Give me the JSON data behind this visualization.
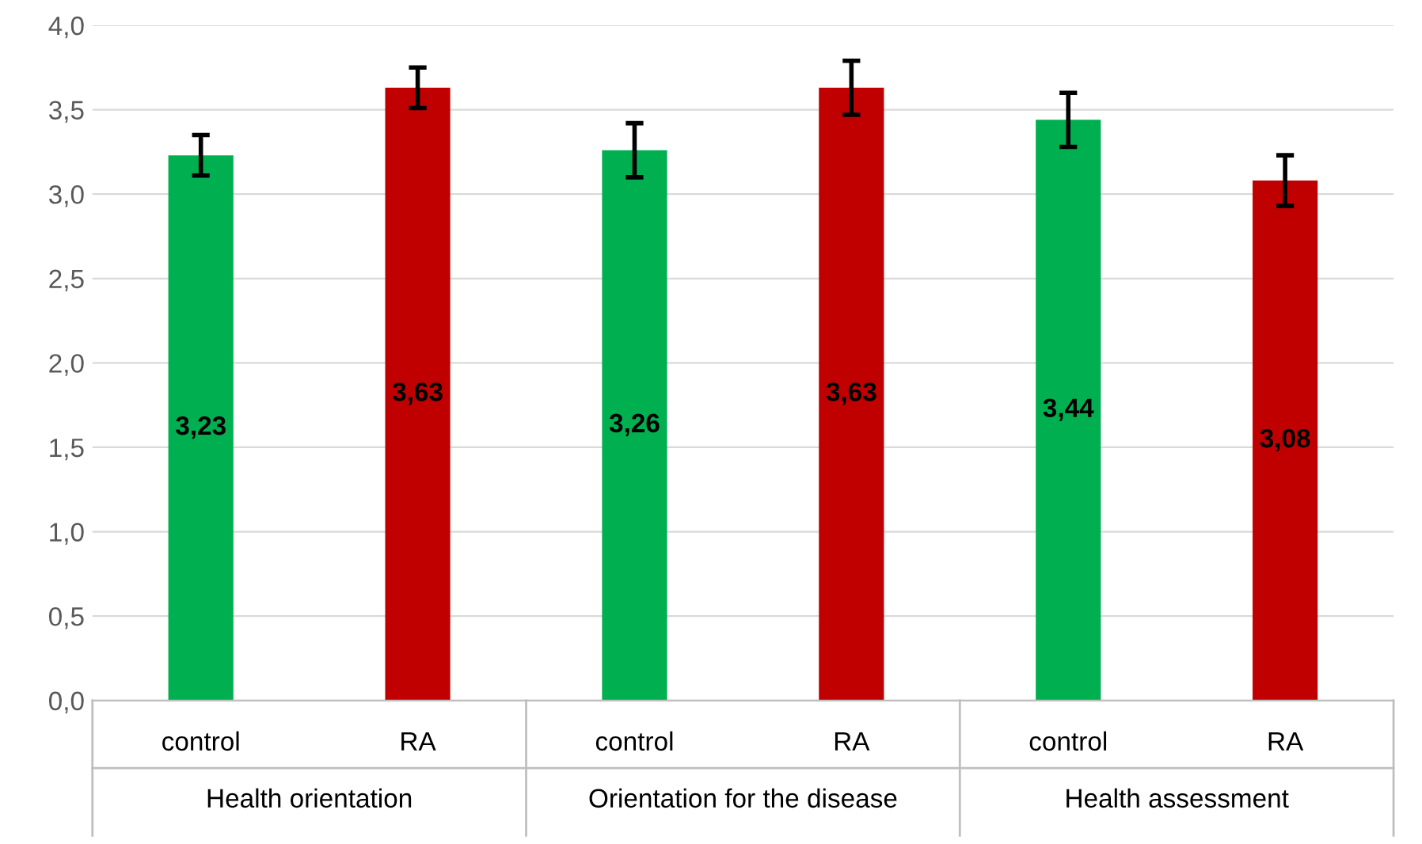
{
  "chart_data": {
    "type": "bar",
    "categories": [
      "control",
      "RA",
      "control",
      "RA",
      "control",
      "RA"
    ],
    "values": [
      3.23,
      3.63,
      3.26,
      3.63,
      3.44,
      3.08
    ],
    "colors": [
      "#00b050",
      "#c00000",
      "#00b050",
      "#c00000",
      "#00b050",
      "#c00000"
    ],
    "errors": [
      0.12,
      0.12,
      0.16,
      0.16,
      0.16,
      0.15
    ],
    "value_labels": [
      "3,23",
      "3,63",
      "3,26",
      "3,63",
      "3,44",
      "3,08"
    ],
    "ylim": [
      0,
      4
    ],
    "yticks": [
      {
        "value": 0,
        "label": "0,0"
      },
      {
        "value": 0.5,
        "label": "0,5"
      },
      {
        "value": 1,
        "label": "1,0"
      },
      {
        "value": 1.5,
        "label": "1,5"
      },
      {
        "value": 2,
        "label": "2,0"
      },
      {
        "value": 2.5,
        "label": "2,5"
      },
      {
        "value": 3,
        "label": "3,0"
      },
      {
        "value": 3.5,
        "label": "3,5"
      },
      {
        "value": 4,
        "label": "4,0"
      }
    ],
    "grid": "y",
    "annotations": [
      "Health orientation",
      "Orientation for the disease",
      "Health assessment"
    ]
  }
}
